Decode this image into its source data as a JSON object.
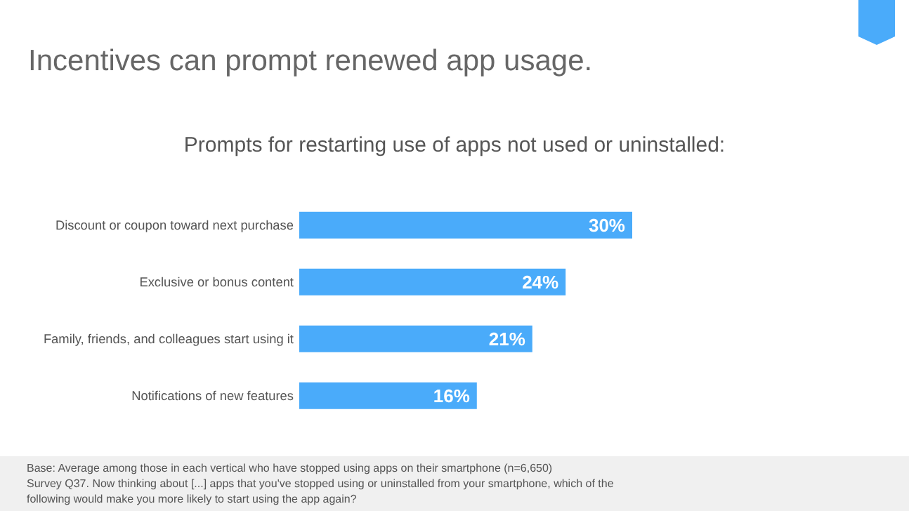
{
  "chart_data": {
    "type": "bar",
    "orientation": "horizontal",
    "title": "Incentives can prompt renewed app usage.",
    "subtitle": "Prompts for restarting use of apps not used or uninstalled:",
    "categories": [
      "Discount or coupon toward next purchase",
      "Exclusive or bonus content",
      "Family, friends, and colleagues start using it",
      "Notifications of new features"
    ],
    "values": [
      30,
      24,
      21,
      16
    ],
    "value_labels": [
      "30%",
      "24%",
      "21%",
      "16%"
    ],
    "color": "#4aabfa",
    "grid": false,
    "tick_labels": "y",
    "annotations": [
      "Base: Average among those in each vertical who have stopped using apps on their smartphone  (n=6,650)",
      "Survey Q37. Now thinking about [...] apps that you've stopped using or uninstalled from your smartphone, which of the following would make you more likely to start using the app again?"
    ]
  }
}
